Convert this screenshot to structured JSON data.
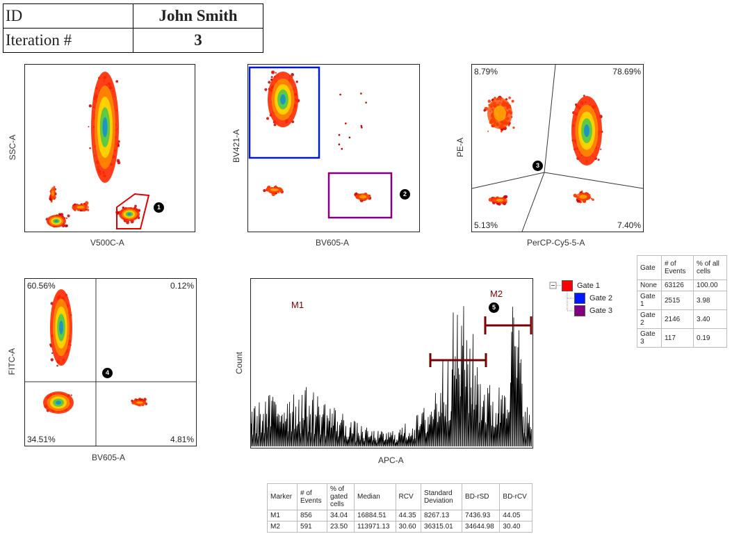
{
  "header": {
    "rows": [
      {
        "key": "ID",
        "value": "John Smith"
      },
      {
        "key": "Iteration #",
        "value": "3"
      }
    ]
  },
  "plots": {
    "p1": {
      "xlabel": "V500C-A",
      "ylabel": "SSC-A",
      "badge": "1",
      "gate_color": "#e00000"
    },
    "p2": {
      "xlabel": "BV605-A",
      "ylabel": "BV421-A",
      "badge": "2",
      "gate2_color": "#0018d0",
      "gate3_color": "#800080"
    },
    "p3": {
      "xlabel": "PerCP-Cy5-5-A",
      "ylabel": "PE-A",
      "badge": "3",
      "quadrants": {
        "tl": "8.79%",
        "tr": "78.69%",
        "bl": "5.13%",
        "br": "7.40%"
      }
    },
    "p4": {
      "xlabel": "BV605-A",
      "ylabel": "FITC-A",
      "badge": "4",
      "quadrants": {
        "tl": "60.56%",
        "tr": "0.12%",
        "bl": "34.51%",
        "br": "4.81%"
      }
    },
    "p5": {
      "xlabel": "APC-A",
      "ylabel": "Count",
      "badge": "5",
      "marker1": "M1",
      "marker2": "M2",
      "marker_color": "#7a0000"
    }
  },
  "gate_tree": {
    "items": [
      {
        "label": "Gate 1",
        "color": "#ff0000"
      },
      {
        "label": "Gate 2",
        "color": "#0018ff"
      },
      {
        "label": "Gate 3",
        "color": "#800080"
      }
    ]
  },
  "gate_table": {
    "headers": [
      "Gate",
      "# of Events",
      "% of all cells"
    ],
    "rows": [
      [
        "None",
        "63126",
        "100.00"
      ],
      [
        "Gate 1",
        "2515",
        "3.98"
      ],
      [
        "Gate 2",
        "2146",
        "3.40"
      ],
      [
        "Gate 3",
        "117",
        "0.19"
      ]
    ]
  },
  "marker_table": {
    "headers": [
      "Marker",
      "# of Events",
      "% of gated cells",
      "Median",
      "RCV",
      "Standard Deviation",
      "BD-rSD",
      "BD-rCV"
    ],
    "rows": [
      [
        "M1",
        "856",
        "34.04",
        "16884.51",
        "44.35",
        "8267.13",
        "7436.93",
        "44.05"
      ],
      [
        "M2",
        "591",
        "23.50",
        "113971.13",
        "30.60",
        "36315.01",
        "34644.98",
        "30.40"
      ]
    ]
  },
  "chart_data": [
    {
      "type": "scatter",
      "xlabel": "V500C-A",
      "ylabel": "SSC-A",
      "gates": [
        "1"
      ]
    },
    {
      "type": "scatter",
      "xlabel": "BV605-A",
      "ylabel": "BV421-A",
      "gates": [
        "2",
        "3"
      ]
    },
    {
      "type": "scatter",
      "xlabel": "PerCP-Cy5-5-A",
      "ylabel": "PE-A",
      "gates": [
        "3"
      ],
      "quadrant_percentages": {
        "top-left": 8.79,
        "top-right": 78.69,
        "bottom-left": 5.13,
        "bottom-right": 7.4
      }
    },
    {
      "type": "scatter",
      "xlabel": "BV605-A",
      "ylabel": "FITC-A",
      "gates": [
        "4"
      ],
      "quadrant_percentages": {
        "top-left": 60.56,
        "top-right": 0.12,
        "bottom-left": 34.51,
        "bottom-right": 4.81
      }
    },
    {
      "type": "bar",
      "xlabel": "APC-A",
      "ylabel": "Count",
      "markers": [
        "M1",
        "M2"
      ],
      "gates": [
        "5"
      ]
    }
  ]
}
